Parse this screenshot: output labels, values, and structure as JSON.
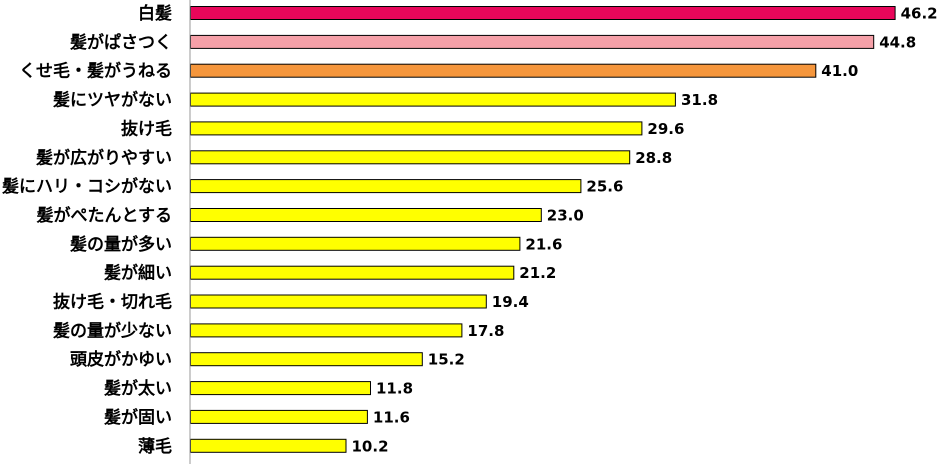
{
  "chart_data": {
    "type": "bar",
    "orientation": "horizontal",
    "title": "",
    "xlabel": "",
    "ylabel": "",
    "xlim": [
      0,
      50
    ],
    "grid": false,
    "legend": "none",
    "categories": [
      "白髪",
      "髪がぱさつく",
      "くせ毛・髪がうねる",
      "髪にツヤがない",
      "抜け毛",
      "髪が広がりやすい",
      "髪にハリ・コシがない",
      "髪がぺたんとする",
      "髪の量が多い",
      "髪が細い",
      "抜け毛・切れ毛",
      "髪の量が少ない",
      "頭皮がかゆい",
      "髪が太い",
      "髪が固い",
      "薄毛"
    ],
    "values": [
      46.2,
      44.8,
      41.0,
      31.8,
      29.6,
      28.8,
      25.6,
      23.0,
      21.6,
      21.2,
      19.4,
      17.8,
      15.2,
      11.8,
      11.6,
      10.2
    ],
    "value_labels": [
      "46.2",
      "44.8",
      "41.0",
      "31.8",
      "29.6",
      "28.8",
      "25.6",
      "23.0",
      "21.6",
      "21.2",
      "19.4",
      "17.8",
      "15.2",
      "11.8",
      "11.6",
      "10.2"
    ],
    "bar_colors": [
      "#e8065a",
      "#f5a0a8",
      "#f5963c",
      "#ffff00",
      "#ffff00",
      "#ffff00",
      "#ffff00",
      "#ffff00",
      "#ffff00",
      "#ffff00",
      "#ffff00",
      "#ffff00",
      "#ffff00",
      "#ffff00",
      "#ffff00",
      "#ffff00"
    ]
  }
}
